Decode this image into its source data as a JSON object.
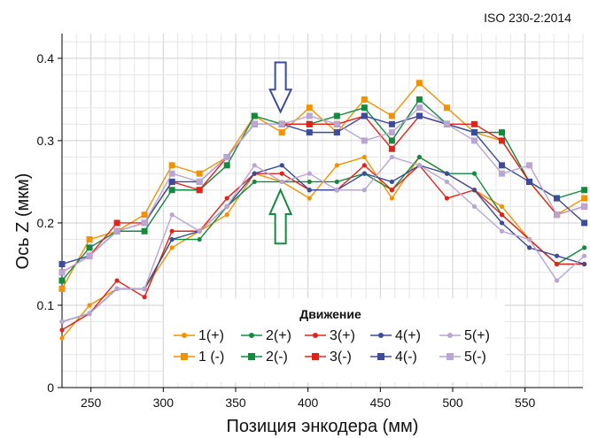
{
  "chart_data": {
    "type": "line",
    "standard": "ISO 230-2:2014",
    "xlabel": "Позиция энкодера (мм)",
    "ylabel": "Ось Z (мкм)",
    "xlim": [
      230,
      590
    ],
    "ylim": [
      0,
      0.43
    ],
    "xticks": [
      250,
      300,
      350,
      400,
      450,
      500,
      550
    ],
    "yticks": [
      0,
      0.1,
      0.2,
      0.3,
      0.4
    ],
    "ytick_labels": [
      "0",
      "0.1",
      "0.2",
      "0.3",
      "0.4"
    ],
    "grid": true,
    "legend": {
      "title": "Движение",
      "placement": "bottom-center"
    },
    "x": [
      230,
      249,
      268,
      287,
      306,
      325,
      344,
      363,
      382,
      401,
      420,
      439,
      458,
      477,
      496,
      515,
      534,
      553,
      572,
      591
    ],
    "series": [
      {
        "name": "1(+)",
        "color": "#f39200",
        "marker": "circle",
        "values": [
          0.06,
          0.1,
          0.12,
          0.12,
          0.17,
          0.19,
          0.21,
          0.26,
          0.25,
          0.23,
          0.27,
          0.28,
          0.23,
          0.28,
          0.26,
          0.24,
          0.22,
          0.18,
          0.15,
          0.15
        ]
      },
      {
        "name": "2(+)",
        "color": "#138a3e",
        "marker": "circle",
        "values": [
          0.08,
          0.09,
          0.12,
          0.12,
          0.18,
          0.18,
          0.22,
          0.25,
          0.25,
          0.25,
          0.25,
          0.26,
          0.24,
          0.28,
          0.26,
          0.26,
          0.21,
          0.18,
          0.15,
          0.17
        ]
      },
      {
        "name": "3(+)",
        "color": "#e2231a",
        "marker": "circle",
        "values": [
          0.07,
          0.09,
          0.13,
          0.11,
          0.19,
          0.19,
          0.23,
          0.26,
          0.26,
          0.24,
          0.24,
          0.27,
          0.24,
          0.27,
          0.23,
          0.24,
          0.21,
          0.18,
          0.15,
          0.15
        ]
      },
      {
        "name": "4(+)",
        "color": "#3c4b9a",
        "marker": "circle",
        "values": [
          0.08,
          0.09,
          0.12,
          0.12,
          0.18,
          0.19,
          0.22,
          0.26,
          0.27,
          0.24,
          0.24,
          0.26,
          0.25,
          0.27,
          0.26,
          0.24,
          0.2,
          0.17,
          0.16,
          0.15
        ]
      },
      {
        "name": "5(+)",
        "color": "#b9a6d2",
        "marker": "circle",
        "values": [
          0.08,
          0.09,
          0.12,
          0.12,
          0.21,
          0.19,
          0.22,
          0.27,
          0.25,
          0.26,
          0.24,
          0.24,
          0.28,
          0.27,
          0.25,
          0.22,
          0.19,
          0.18,
          0.13,
          0.16
        ]
      },
      {
        "name": "1 (-)",
        "color": "#f39200",
        "marker": "square",
        "values": [
          0.12,
          0.18,
          0.19,
          0.21,
          0.27,
          0.26,
          0.28,
          0.33,
          0.31,
          0.34,
          0.31,
          0.35,
          0.33,
          0.37,
          0.34,
          0.31,
          0.3,
          0.25,
          0.21,
          0.23
        ]
      },
      {
        "name": "2(-)",
        "color": "#138a3e",
        "marker": "square",
        "values": [
          0.13,
          0.17,
          0.19,
          0.19,
          0.24,
          0.24,
          0.27,
          0.33,
          0.32,
          0.32,
          0.33,
          0.34,
          0.3,
          0.35,
          0.32,
          0.31,
          0.31,
          0.25,
          0.23,
          0.24
        ]
      },
      {
        "name": "3(-)",
        "color": "#e2231a",
        "marker": "square",
        "values": [
          0.14,
          0.16,
          0.2,
          0.2,
          0.25,
          0.24,
          0.28,
          0.32,
          0.32,
          0.32,
          0.32,
          0.33,
          0.29,
          0.33,
          0.32,
          0.32,
          0.3,
          0.25,
          0.21,
          0.22
        ]
      },
      {
        "name": "4(-)",
        "color": "#3c4b9a",
        "marker": "square",
        "values": [
          0.15,
          0.16,
          0.19,
          0.2,
          0.25,
          0.25,
          0.28,
          0.32,
          0.32,
          0.31,
          0.31,
          0.33,
          0.32,
          0.33,
          0.32,
          0.31,
          0.27,
          0.25,
          0.23,
          0.2
        ]
      },
      {
        "name": "5(-)",
        "color": "#b9a6d2",
        "marker": "square",
        "values": [
          0.14,
          0.16,
          0.19,
          0.2,
          0.26,
          0.25,
          0.28,
          0.32,
          0.32,
          0.33,
          0.32,
          0.3,
          0.31,
          0.34,
          0.32,
          0.3,
          0.26,
          0.27,
          0.21,
          0.22
        ]
      }
    ],
    "annotations": [
      {
        "type": "arrow-down",
        "color": "#3c4b9a",
        "x": 381,
        "y_tip": 0.335,
        "y_tail": 0.395
      },
      {
        "type": "arrow-up",
        "color": "#138a3e",
        "x": 381,
        "y_tip": 0.24,
        "y_tail": 0.175
      }
    ]
  }
}
